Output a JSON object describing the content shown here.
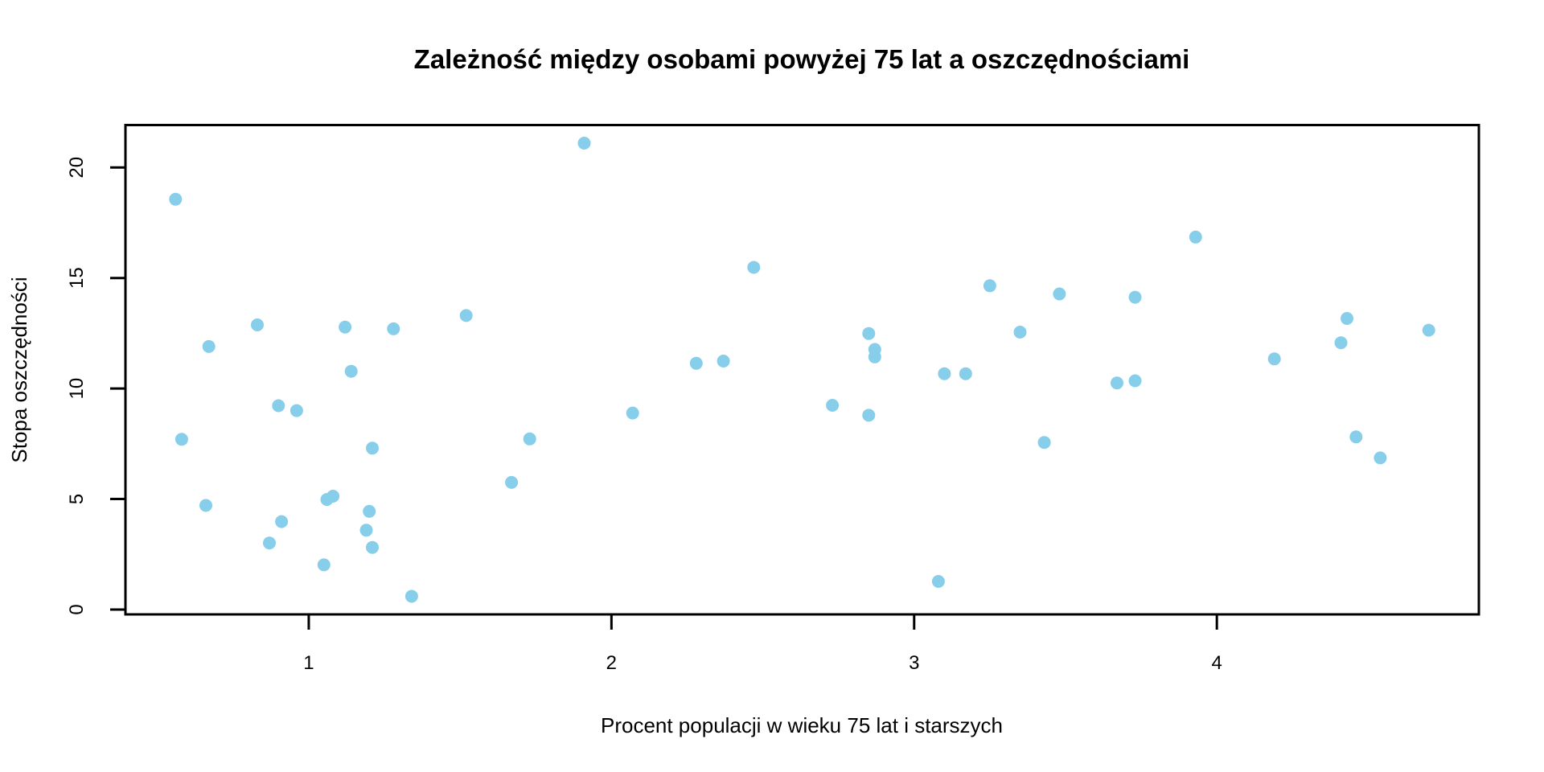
{
  "chart_data": {
    "type": "scatter",
    "title": "Zależność między osobami powyżej 75 lat a oszczędnościami",
    "xlabel": "Procent populacji w wieku 75 lat i starszych",
    "ylabel": "Stopa oszczędności",
    "x": [
      2.87,
      4.41,
      4.43,
      1.67,
      0.83,
      2.85,
      1.34,
      0.67,
      1.06,
      1.14,
      3.93,
      1.19,
      2.37,
      4.7,
      3.35,
      3.1,
      0.87,
      0.58,
      3.08,
      0.96,
      4.19,
      3.48,
      1.91,
      0.91,
      3.73,
      2.47,
      3.67,
      3.25,
      3.17,
      1.21,
      1.2,
      1.05,
      1.28,
      1.12,
      2.85,
      2.28,
      1.52,
      2.87,
      4.54,
      3.73,
      1.08,
      1.21,
      4.46,
      3.43,
      0.9,
      0.56,
      1.73,
      2.73,
      2.07,
      0.66
    ],
    "y": [
      11.43,
      12.07,
      13.17,
      5.75,
      12.88,
      8.79,
      0.6,
      11.9,
      4.98,
      10.78,
      16.85,
      3.59,
      11.24,
      12.64,
      12.55,
      10.67,
      3.01,
      7.7,
      1.27,
      9.0,
      11.34,
      14.28,
      21.1,
      3.98,
      10.35,
      15.48,
      10.25,
      14.65,
      10.67,
      7.3,
      4.44,
      2.02,
      12.7,
      12.78,
      12.49,
      11.14,
      13.3,
      11.77,
      6.86,
      14.13,
      5.13,
      2.81,
      7.81,
      7.56,
      9.22,
      18.56,
      7.72,
      9.24,
      8.89,
      4.71
    ],
    "xticks": [
      1,
      2,
      3,
      4
    ],
    "yticks": [
      0,
      5,
      10,
      15,
      20
    ],
    "xlim": [
      0.3944,
      4.8656
    ],
    "ylim": [
      -0.22,
      21.92
    ],
    "grid": false,
    "legend": "none",
    "point_color": "#87CEEB",
    "point_radius_px": 8,
    "axis_color": "#000000",
    "background": "#FFFFFF"
  }
}
